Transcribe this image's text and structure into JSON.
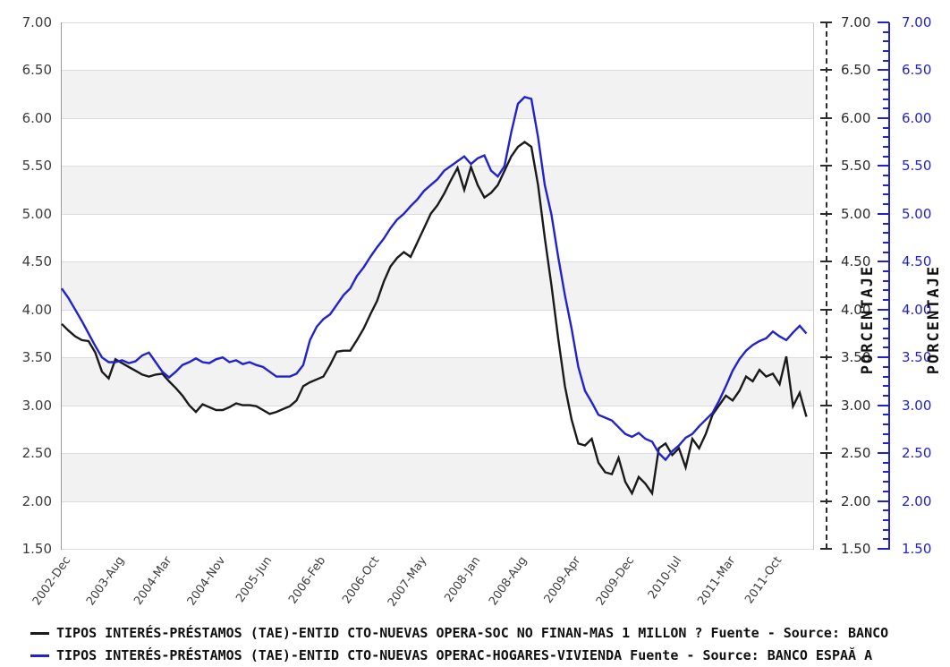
{
  "chart_data": {
    "type": "line",
    "title": "",
    "right_axis_label": "PORCENTAJE",
    "y_axis": {
      "min": 1.5,
      "max": 7.0,
      "step": 0.5,
      "tick_labels": [
        "7.00",
        "6.50",
        "6.00",
        "5.50",
        "5.00",
        "4.50",
        "4.00",
        "3.50",
        "3.00",
        "2.50",
        "2.00",
        "1.50"
      ]
    },
    "x_axis": {
      "start_month": "2002-Dec",
      "end_month": "2012-Mar",
      "months_total": 112,
      "tick_labels": [
        "2002-Dec",
        "2003-Aug",
        "2004-Mar",
        "2004-Nov",
        "2005-Jun",
        "2006-Feb",
        "2006-Oct",
        "2007-May",
        "2008-Jan",
        "2008-Aug",
        "2009-Apr",
        "2009-Dec",
        "2010-Jul",
        "2011-Mar",
        "2011-Oct"
      ],
      "tick_month_index": [
        0,
        8,
        15,
        23,
        30,
        38,
        46,
        53,
        61,
        68,
        76,
        84,
        91,
        99,
        106
      ]
    },
    "series": [
      {
        "name": "TIPOS INTERÉS-PRÉSTAMOS (TAE)-ENTID CTO-NUEVAS OPERA-SOC NO FINAN-MAS 1 MILLON ?  Fuente - Source: BANCO",
        "color": "#1a1a1a",
        "values": [
          3.85,
          3.78,
          3.72,
          3.68,
          3.67,
          3.55,
          3.35,
          3.28,
          3.48,
          3.44,
          3.4,
          3.36,
          3.32,
          3.3,
          3.32,
          3.33,
          3.25,
          3.18,
          3.1,
          3.0,
          2.93,
          3.01,
          2.98,
          2.95,
          2.95,
          2.98,
          3.02,
          3.0,
          3.0,
          2.99,
          2.95,
          2.91,
          2.93,
          2.96,
          2.99,
          3.05,
          3.2,
          3.24,
          3.27,
          3.3,
          3.42,
          3.56,
          3.57,
          3.57,
          3.68,
          3.8,
          3.95,
          4.09,
          4.29,
          4.45,
          4.54,
          4.6,
          4.55,
          4.7,
          4.85,
          5.0,
          5.09,
          5.21,
          5.35,
          5.48,
          5.25,
          5.49,
          5.3,
          5.17,
          5.22,
          5.3,
          5.45,
          5.6,
          5.7,
          5.75,
          5.7,
          5.3,
          4.75,
          4.25,
          3.7,
          3.2,
          2.85,
          2.6,
          2.58,
          2.65,
          2.4,
          2.3,
          2.28,
          2.45,
          2.2,
          2.08,
          2.25,
          2.18,
          2.08,
          2.55,
          2.6,
          2.48,
          2.55,
          2.35,
          2.65,
          2.55,
          2.7,
          2.9,
          3.0,
          3.1,
          3.05,
          3.15,
          3.3,
          3.25,
          3.37,
          3.3,
          3.33,
          3.22,
          3.51,
          2.99,
          3.13,
          2.88
        ]
      },
      {
        "name": "TIPOS INTERÉS-PRÉSTAMOS (TAE)-ENTID CTO-NUEVAS OPERAC-HOGARES-VIVIENDA  Fuente - Source: BANCO ESPAĂ A",
        "color": "#2222cc",
        "values": [
          4.22,
          4.12,
          4.0,
          3.88,
          3.75,
          3.62,
          3.5,
          3.45,
          3.45,
          3.47,
          3.44,
          3.46,
          3.52,
          3.55,
          3.45,
          3.35,
          3.29,
          3.35,
          3.42,
          3.45,
          3.49,
          3.45,
          3.44,
          3.48,
          3.5,
          3.45,
          3.47,
          3.43,
          3.45,
          3.42,
          3.4,
          3.35,
          3.3,
          3.3,
          3.3,
          3.33,
          3.42,
          3.68,
          3.82,
          3.9,
          3.95,
          4.05,
          4.15,
          4.22,
          4.35,
          4.44,
          4.55,
          4.65,
          4.74,
          4.85,
          4.94,
          5.0,
          5.08,
          5.15,
          5.24,
          5.3,
          5.36,
          5.45,
          5.5,
          5.55,
          5.6,
          5.52,
          5.58,
          5.61,
          5.45,
          5.39,
          5.5,
          5.85,
          6.15,
          6.22,
          6.2,
          5.8,
          5.3,
          4.99,
          4.55,
          4.15,
          3.8,
          3.4,
          3.15,
          3.03,
          2.9,
          2.87,
          2.84,
          2.77,
          2.7,
          2.67,
          2.71,
          2.65,
          2.62,
          2.5,
          2.43,
          2.52,
          2.58,
          2.66,
          2.7,
          2.78,
          2.85,
          2.92,
          3.05,
          3.2,
          3.36,
          3.48,
          3.57,
          3.63,
          3.67,
          3.7,
          3.77,
          3.72,
          3.68,
          3.76,
          3.83,
          3.75
        ]
      }
    ],
    "legend_position": "bottom",
    "grid": true
  },
  "legend": {
    "items": [
      {
        "label": "TIPOS INTERÉS-PRÉSTAMOS (TAE)-ENTID CTO-NUEVAS OPERA-SOC NO FINAN-MAS 1 MILLON ?  Fuente - Source: BANCO",
        "color": "#1a1a1a"
      },
      {
        "label": "TIPOS INTERÉS-PRÉSTAMOS (TAE)-ENTID CTO-NUEVAS OPERAC-HOGARES-VIVIENDA  Fuente - Source: BANCO ESPAĂ A",
        "color": "#2222cc"
      }
    ]
  }
}
